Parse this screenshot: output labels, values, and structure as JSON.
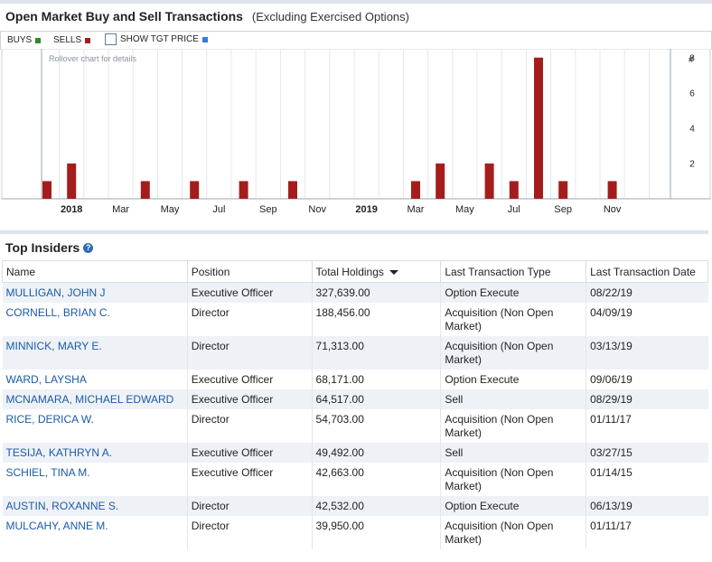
{
  "title": "Open Market Buy and Sell Transactions",
  "subtitle": "(Excluding Exercised Options)",
  "legend": {
    "buys_label": "BUYS",
    "sells_label": "SELLS",
    "tgt_label": "SHOW TGT PRICE",
    "buys_color": "#2e8b2e",
    "sells_color": "#a51c1c",
    "tgt_color": "#2f7ed8"
  },
  "chart_data": {
    "type": "bar",
    "hint": "Rollover chart for details",
    "ylabel": "#",
    "yticks": [
      2,
      4,
      6,
      8
    ],
    "ylim": [
      0,
      8.5
    ],
    "x_tick_labels": [
      {
        "label": "2018",
        "bold": true
      },
      {
        "label": "Mar",
        "bold": false
      },
      {
        "label": "May",
        "bold": false
      },
      {
        "label": "Jul",
        "bold": false
      },
      {
        "label": "Sep",
        "bold": false
      },
      {
        "label": "Nov",
        "bold": false
      },
      {
        "label": "2019",
        "bold": true
      },
      {
        "label": "Mar",
        "bold": false
      },
      {
        "label": "May",
        "bold": false
      },
      {
        "label": "Jul",
        "bold": false
      },
      {
        "label": "Sep",
        "bold": false
      },
      {
        "label": "Nov",
        "bold": false
      }
    ],
    "series": [
      {
        "name": "SELLS",
        "points": [
          {
            "date": "2017-12",
            "value": 1
          },
          {
            "date": "2018-01",
            "value": 2
          },
          {
            "date": "2018-04",
            "value": 1
          },
          {
            "date": "2018-06",
            "value": 1
          },
          {
            "date": "2018-08",
            "value": 1
          },
          {
            "date": "2018-10",
            "value": 1
          },
          {
            "date": "2019-03",
            "value": 1
          },
          {
            "date": "2019-04",
            "value": 2
          },
          {
            "date": "2019-06",
            "value": 2
          },
          {
            "date": "2019-07",
            "value": 1
          },
          {
            "date": "2019-08",
            "value": 8
          },
          {
            "date": "2019-09",
            "value": 1
          },
          {
            "date": "2019-11",
            "value": 1
          }
        ]
      }
    ]
  },
  "insiders": {
    "title": "Top Insiders",
    "columns": [
      "Name",
      "Position",
      "Total Holdings",
      "Last Transaction Type",
      "Last Transaction Date"
    ],
    "rows": [
      {
        "name": "MULLIGAN, JOHN J",
        "position": "Executive Officer",
        "holdings": "327,639.00",
        "type": "Option Execute",
        "date": "08/22/19"
      },
      {
        "name": "CORNELL, BRIAN C.",
        "position": "Director",
        "holdings": "188,456.00",
        "type": "Acquisition (Non Open Market)",
        "date": "04/09/19"
      },
      {
        "name": "MINNICK, MARY E.",
        "position": "Director",
        "holdings": "71,313.00",
        "type": "Acquisition (Non Open Market)",
        "date": "03/13/19"
      },
      {
        "name": "WARD, LAYSHA",
        "position": "Executive Officer",
        "holdings": "68,171.00",
        "type": "Option Execute",
        "date": "09/06/19"
      },
      {
        "name": "MCNAMARA, MICHAEL EDWARD",
        "position": "Executive Officer",
        "holdings": "64,517.00",
        "type": "Sell",
        "date": "08/29/19"
      },
      {
        "name": "RICE, DERICA W.",
        "position": "Director",
        "holdings": "54,703.00",
        "type": "Acquisition (Non Open Market)",
        "date": "01/11/17"
      },
      {
        "name": "TESIJA, KATHRYN A.",
        "position": "Executive Officer",
        "holdings": "49,492.00",
        "type": "Sell",
        "date": "03/27/15"
      },
      {
        "name": "SCHIEL, TINA M.",
        "position": "Executive Officer",
        "holdings": "42,663.00",
        "type": "Acquisition (Non Open Market)",
        "date": "01/14/15"
      },
      {
        "name": "AUSTIN, ROXANNE S.",
        "position": "Director",
        "holdings": "42,532.00",
        "type": "Option Execute",
        "date": "06/13/19"
      },
      {
        "name": "MULCAHY, ANNE M.",
        "position": "Director",
        "holdings": "39,950.00",
        "type": "Acquisition (Non Open Market)",
        "date": "01/11/17"
      }
    ]
  }
}
